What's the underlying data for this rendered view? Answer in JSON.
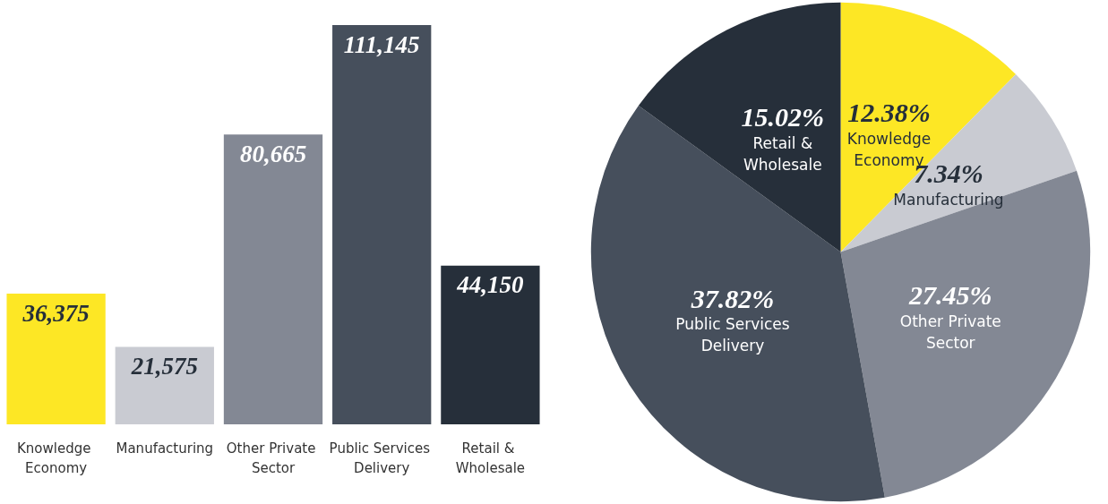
{
  "chart_data": [
    {
      "type": "bar",
      "categories": [
        "Knowledge Economy",
        "Manufacturing",
        "Other Private Sector",
        "Public Services Delivery",
        "Retail & Wholesale"
      ],
      "values": [
        36375,
        21575,
        80665,
        111145,
        44150
      ],
      "colors": [
        "#fde725",
        "#c9cbd2",
        "#838894",
        "#464f5c",
        "#262f3a"
      ],
      "value_labels": [
        "36,375",
        "21,575",
        "80,665",
        "111,145",
        "44,150"
      ],
      "grid": false,
      "legend": false
    },
    {
      "type": "pie",
      "categories": [
        "Knowledge Economy",
        "Manufacturing",
        "Other Private Sector",
        "Public Services Delivery",
        "Retail & Wholesale"
      ],
      "values": [
        12.38,
        7.34,
        27.45,
        37.82,
        15.02
      ],
      "colors": [
        "#fde725",
        "#c9cbd2",
        "#838894",
        "#464f5c",
        "#262f3a"
      ],
      "value_labels": [
        "12.38%",
        "7.34%",
        "27.45%",
        "37.82%",
        "15.02%"
      ],
      "legend": false
    }
  ]
}
